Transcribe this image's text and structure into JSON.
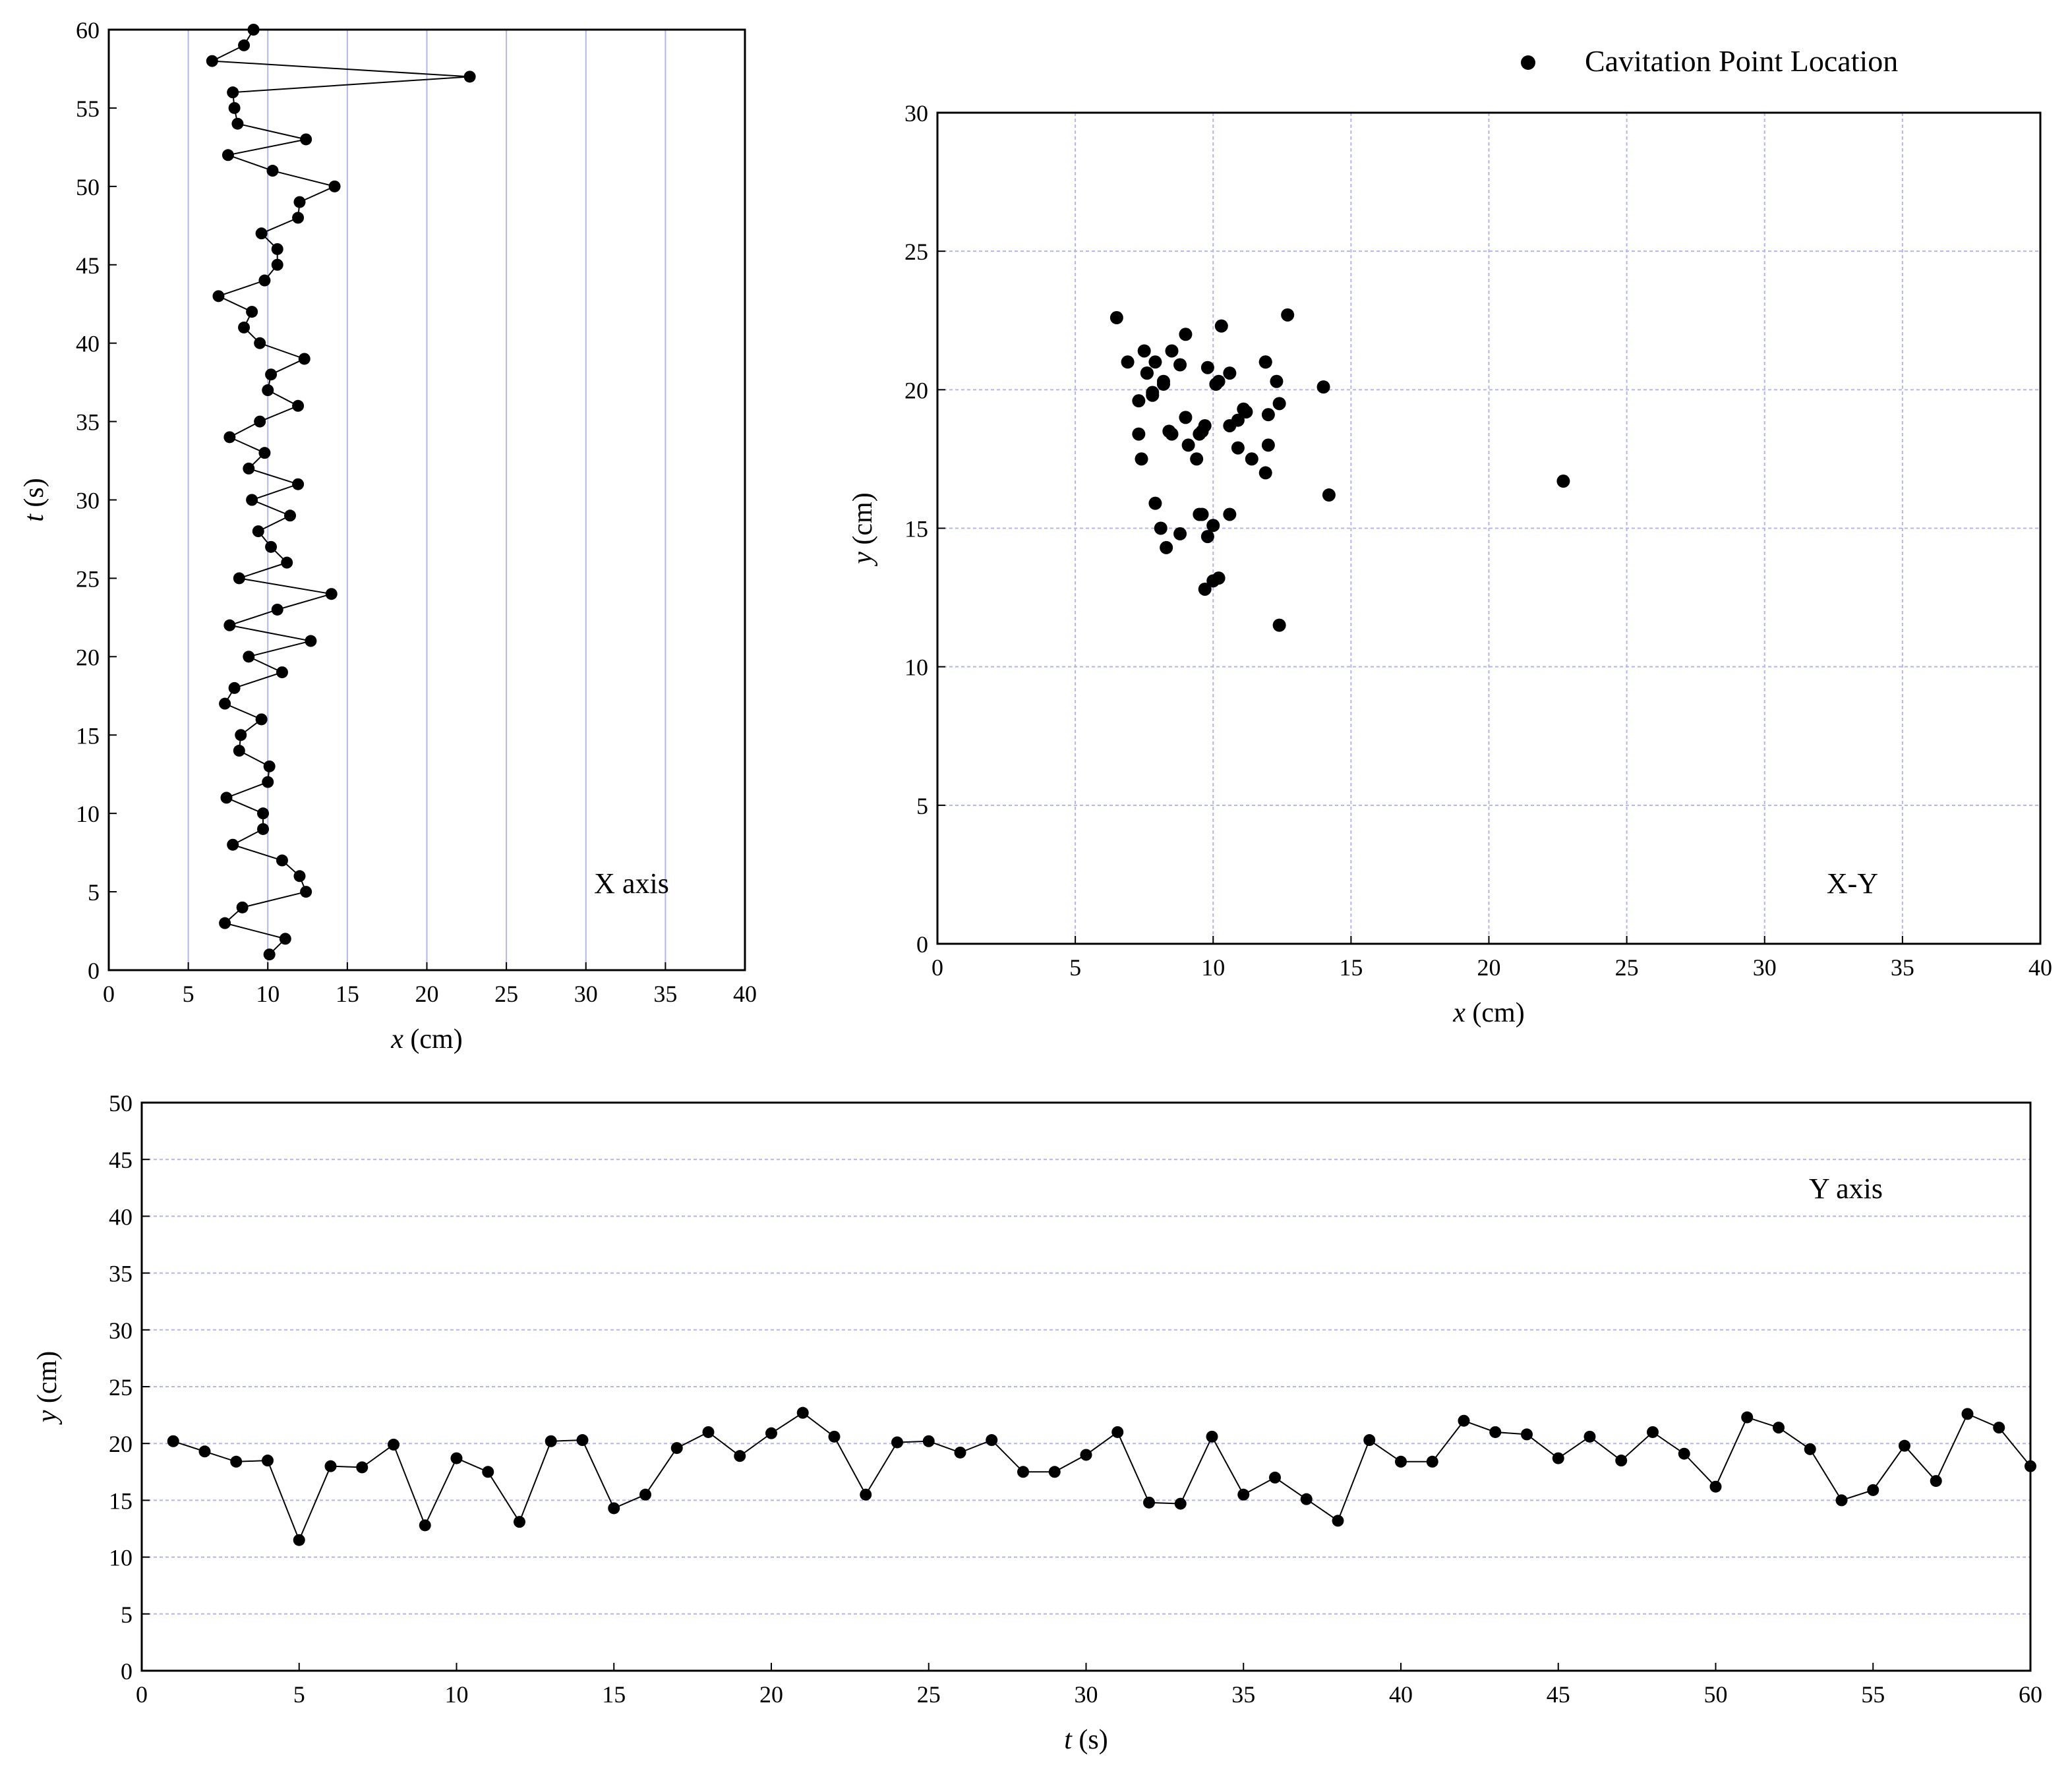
{
  "chart_data": [
    {
      "id": "x-axis-panel",
      "type": "line",
      "panel_label": "X axis",
      "xlabel_var": "x",
      "xlabel_unit": " (cm)",
      "ylabel_var": "t",
      "ylabel_unit": " (s)",
      "xlim": [
        0,
        40
      ],
      "ylim": [
        0,
        60
      ],
      "xticks": [
        0,
        5,
        10,
        15,
        20,
        25,
        30,
        35,
        40
      ],
      "yticks": [
        0,
        5,
        10,
        15,
        20,
        25,
        30,
        35,
        40,
        45,
        50,
        55,
        60
      ],
      "grid": "vertical",
      "markers": true,
      "series": [
        {
          "x": [
            10.1,
            11.1,
            7.3,
            8.4,
            12.4,
            12.0,
            10.9,
            7.8,
            9.7,
            9.7,
            7.4,
            10.0,
            10.1,
            8.2,
            8.3,
            9.6,
            7.3,
            7.9,
            10.9,
            8.8,
            12.7,
            7.6,
            10.6,
            14.0,
            8.2,
            11.2,
            10.2,
            9.4,
            11.4,
            9.0,
            11.9,
            8.8,
            9.8,
            7.6,
            9.5,
            11.9,
            10.0,
            10.2,
            12.3,
            9.5,
            8.5,
            9.0,
            6.9,
            9.8,
            10.6,
            10.6,
            9.6,
            11.9,
            12.0,
            14.2,
            10.3,
            7.5,
            12.4,
            8.1,
            7.9,
            7.8,
            22.7,
            6.5,
            8.5,
            9.1
          ],
          "y": [
            1,
            2,
            3,
            4,
            5,
            6,
            7,
            8,
            9,
            10,
            11,
            12,
            13,
            14,
            15,
            16,
            17,
            18,
            19,
            20,
            21,
            22,
            23,
            24,
            25,
            26,
            27,
            28,
            29,
            30,
            31,
            32,
            33,
            34,
            35,
            36,
            37,
            38,
            39,
            40,
            41,
            42,
            43,
            44,
            45,
            46,
            47,
            48,
            49,
            50,
            51,
            52,
            53,
            54,
            55,
            56,
            57,
            58,
            59,
            60
          ]
        }
      ]
    },
    {
      "id": "xy-panel",
      "type": "scatter",
      "panel_label": "X-Y",
      "xlabel_var": "x",
      "xlabel_unit": " (cm)",
      "ylabel_var": "y",
      "ylabel_unit": " (cm)",
      "xlim": [
        0,
        40
      ],
      "ylim": [
        0,
        30
      ],
      "xticks": [
        0,
        5,
        10,
        15,
        20,
        25,
        30,
        35,
        40
      ],
      "yticks": [
        0,
        5,
        10,
        15,
        20,
        25,
        30
      ],
      "grid": "both",
      "legend": {
        "label": "Cavitation Point Location",
        "placement": "top-right, outside plot"
      },
      "points": {
        "x": [
          10.1,
          11.1,
          7.3,
          8.4,
          12.4,
          12.0,
          10.9,
          7.8,
          9.7,
          9.7,
          7.4,
          10.0,
          10.1,
          8.2,
          8.3,
          9.6,
          7.3,
          7.9,
          10.9,
          8.8,
          12.7,
          7.6,
          10.6,
          14.0,
          8.2,
          11.2,
          10.2,
          9.4,
          11.4,
          9.0,
          11.9,
          8.8,
          9.8,
          7.6,
          9.5,
          11.9,
          10.0,
          10.2,
          12.3,
          9.5,
          8.5,
          9.0,
          6.9,
          9.8,
          10.6,
          10.6,
          9.6,
          11.9,
          12.0,
          14.2,
          10.3,
          7.5,
          12.4,
          8.1,
          7.9,
          7.8,
          22.7,
          6.5,
          8.5,
          9.1
        ],
        "y": [
          20.2,
          19.3,
          18.4,
          18.5,
          11.5,
          18.0,
          17.9,
          19.9,
          12.8,
          18.7,
          17.5,
          13.1,
          20.2,
          20.3,
          14.3,
          15.5,
          19.6,
          21.0,
          18.9,
          20.9,
          22.7,
          20.6,
          15.5,
          20.1,
          20.2,
          19.2,
          20.3,
          17.5,
          17.5,
          19.0,
          21.0,
          14.8,
          14.7,
          20.6,
          15.5,
          17.0,
          15.1,
          13.2,
          20.3,
          18.4,
          18.4,
          22.0,
          21.0,
          20.8,
          18.7,
          20.6,
          18.5,
          21.0,
          19.1,
          16.2,
          22.3,
          21.4,
          19.5,
          15.0,
          15.9,
          19.8,
          16.7,
          22.6,
          21.4,
          18.0
        ]
      }
    },
    {
      "id": "y-axis-panel",
      "type": "line",
      "panel_label": "Y axis",
      "xlabel_var": "t",
      "xlabel_unit": " (s)",
      "ylabel_var": "y",
      "ylabel_unit": " (cm)",
      "xlim": [
        0,
        60
      ],
      "ylim": [
        0,
        50
      ],
      "xticks": [
        0,
        5,
        10,
        15,
        20,
        25,
        30,
        35,
        40,
        45,
        50,
        55,
        60
      ],
      "yticks": [
        0,
        5,
        10,
        15,
        20,
        25,
        30,
        35,
        40,
        45,
        50
      ],
      "grid": "horizontal",
      "markers": true,
      "series": [
        {
          "x": [
            1,
            2,
            3,
            4,
            5,
            6,
            7,
            8,
            9,
            10,
            11,
            12,
            13,
            14,
            15,
            16,
            17,
            18,
            19,
            20,
            21,
            22,
            23,
            24,
            25,
            26,
            27,
            28,
            29,
            30,
            31,
            32,
            33,
            34,
            35,
            36,
            37,
            38,
            39,
            40,
            41,
            42,
            43,
            44,
            45,
            46,
            47,
            48,
            49,
            50,
            51,
            52,
            53,
            54,
            55,
            56,
            57,
            58,
            59,
            60
          ],
          "y": [
            20.2,
            19.3,
            18.4,
            18.5,
            11.5,
            18.0,
            17.9,
            19.9,
            12.8,
            18.7,
            17.5,
            13.1,
            20.2,
            20.3,
            14.3,
            15.5,
            19.6,
            21.0,
            18.9,
            20.9,
            22.7,
            20.6,
            15.5,
            20.1,
            20.2,
            19.2,
            20.3,
            17.5,
            17.5,
            19.0,
            21.0,
            14.8,
            14.7,
            20.6,
            15.5,
            17.0,
            15.1,
            13.2,
            20.3,
            18.4,
            18.4,
            22.0,
            21.0,
            20.8,
            18.7,
            20.6,
            18.5,
            21.0,
            19.1,
            16.2,
            22.3,
            21.4,
            19.5,
            15.0,
            15.9,
            19.8,
            16.7,
            22.6,
            21.4,
            18.0
          ]
        }
      ]
    }
  ],
  "colors": {
    "grid": "#b4b4ee",
    "ink": "#000000",
    "background": "#ffffff"
  }
}
